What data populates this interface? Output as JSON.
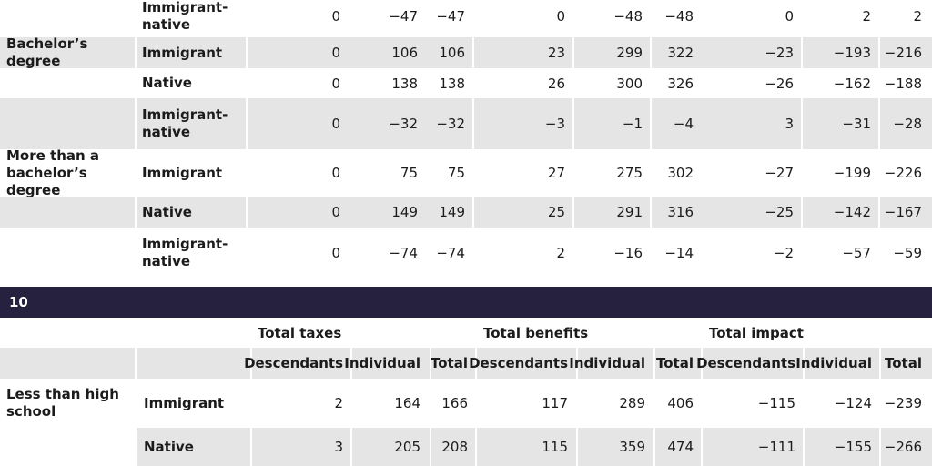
{
  "table_top": {
    "rows": [
      {
        "group": "",
        "sub": "Immigrant-\nnative",
        "bold": true,
        "shade": false,
        "values": [
          "0",
          "−47",
          "−47",
          "0",
          "−48",
          "−48",
          "0",
          "2",
          "2"
        ]
      },
      {
        "group": "Bachelor’s degree",
        "sub": "Immigrant",
        "bold": true,
        "shade": true,
        "values": [
          "0",
          "106",
          "106",
          "23",
          "299",
          "322",
          "−23",
          "−193",
          "−216"
        ]
      },
      {
        "group": "",
        "sub": "Native",
        "bold": true,
        "shade": false,
        "values": [
          "0",
          "138",
          "138",
          "26",
          "300",
          "326",
          "−26",
          "−162",
          "−188"
        ]
      },
      {
        "group": "",
        "sub": "Immigrant-\nnative",
        "bold": true,
        "shade": true,
        "values": [
          "0",
          "−32",
          "−32",
          "−3",
          "−1",
          "−4",
          "3",
          "−31",
          "−28"
        ]
      },
      {
        "group": "More than a\nbachelor’s degree",
        "sub": "Immigrant",
        "bold": true,
        "shade": false,
        "values": [
          "0",
          "75",
          "75",
          "27",
          "275",
          "302",
          "−27",
          "−199",
          "−226"
        ]
      },
      {
        "group": "",
        "sub": "Native",
        "bold": true,
        "shade": true,
        "values": [
          "0",
          "149",
          "149",
          "25",
          "291",
          "316",
          "−25",
          "−142",
          "−167"
        ]
      },
      {
        "group": "",
        "sub": "Immigrant-\nnative",
        "bold": true,
        "shade": false,
        "values": [
          "0",
          "−74",
          "−74",
          "2",
          "−16",
          "−14",
          "−2",
          "−57",
          "−59"
        ]
      }
    ]
  },
  "section": {
    "label": "10"
  },
  "table_bottom": {
    "group_headers": [
      "Total taxes",
      "Total benefits",
      "Total impact"
    ],
    "column_headers": [
      "Descendants",
      "Individual",
      "Total",
      "Descendants",
      "Individual",
      "Total",
      "Descendants",
      "Individual",
      "Total"
    ],
    "rows": [
      {
        "group": "Less than high\nschool",
        "sub": "Immigrant",
        "shade": false,
        "values": [
          "2",
          "164",
          "166",
          "117",
          "289",
          "406",
          "−115",
          "−124",
          "−239"
        ]
      },
      {
        "group": "",
        "sub": "Native",
        "shade": true,
        "values": [
          "3",
          "205",
          "208",
          "115",
          "359",
          "474",
          "−111",
          "−155",
          "−266"
        ]
      }
    ]
  },
  "colors": {
    "band": "#25213f",
    "shade": "#e5e5e5"
  }
}
